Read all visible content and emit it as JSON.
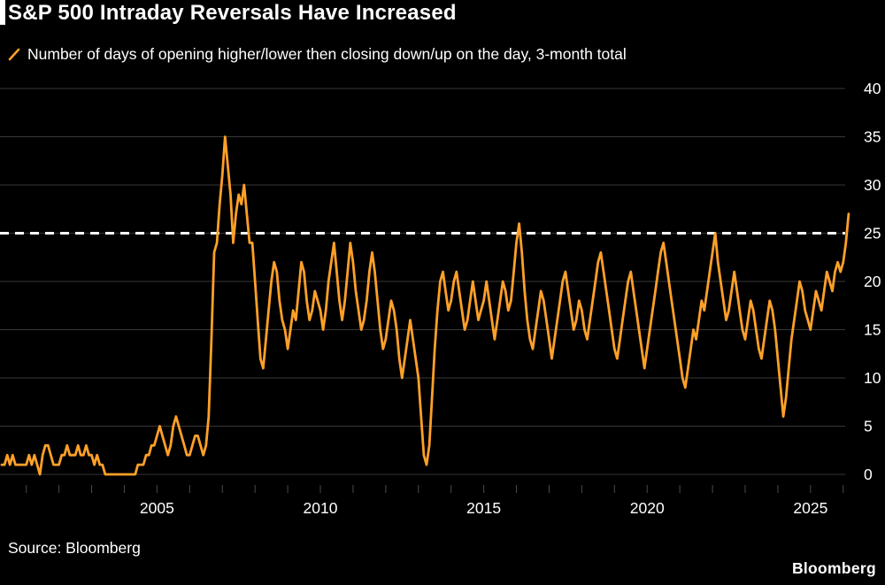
{
  "page": {
    "title": "S&P 500 Intraday Reversals Have Increased",
    "legend_label": "Number of days of opening higher/lower then closing down/up on the day, 3-month total",
    "source": "Source: Bloomberg",
    "brand_logo": "Bloomberg"
  },
  "colors": {
    "background": "#000000",
    "text": "#ffffff",
    "accent_orange": "#ffa028",
    "grid": "#383838",
    "tick": "#4a4a4a",
    "reference_line": "#ffffff"
  },
  "chart_data": {
    "type": "line",
    "title": "S&P 500 Intraday Reversals Have Increased",
    "xlabel": "",
    "ylabel": "",
    "ylim": [
      0,
      40
    ],
    "y_ticks": [
      0,
      5,
      10,
      15,
      20,
      25,
      30,
      35,
      40
    ],
    "x_ticks": [
      2005,
      2010,
      2015,
      2020,
      2025
    ],
    "x_range": [
      2000.25,
      2026.25
    ],
    "grid": "horizontal",
    "y_axis_side": "right",
    "legend_position": "top-left",
    "reference_line": {
      "value": 25,
      "style": "dashed",
      "color": "#ffffff"
    },
    "series": [
      {
        "name": "Number of days of opening higher/lower then closing down/up on the day, 3-month total",
        "color": "#ffa028",
        "x_start": 2000.25,
        "x_step_years": 0.0833333,
        "values": [
          1,
          1,
          2,
          1,
          2,
          1,
          1,
          1,
          1,
          1,
          2,
          1,
          2,
          1,
          0,
          2,
          3,
          3,
          2,
          1,
          1,
          1,
          2,
          2,
          3,
          2,
          2,
          2,
          3,
          2,
          2,
          3,
          2,
          2,
          1,
          2,
          1,
          1,
          0,
          0,
          0,
          0,
          0,
          0,
          0,
          0,
          0,
          0,
          0,
          0,
          1,
          1,
          1,
          2,
          2,
          3,
          3,
          4,
          5,
          4,
          3,
          2,
          3,
          5,
          6,
          5,
          4,
          3,
          2,
          2,
          3,
          4,
          4,
          3,
          2,
          3,
          6,
          14,
          23,
          24,
          28,
          31,
          35,
          32,
          29,
          24,
          27,
          29,
          28,
          30,
          27,
          24,
          24,
          20,
          16,
          12,
          11,
          14,
          17,
          20,
          22,
          21,
          18,
          16,
          15,
          13,
          15,
          17,
          16,
          19,
          22,
          21,
          18,
          16,
          17,
          19,
          18,
          17,
          15,
          17,
          20,
          22,
          24,
          21,
          18,
          16,
          18,
          21,
          24,
          22,
          19,
          17,
          15,
          16,
          18,
          21,
          23,
          21,
          18,
          15,
          13,
          14,
          16,
          18,
          17,
          15,
          12,
          10,
          12,
          14,
          16,
          14,
          12,
          10,
          6,
          2,
          1,
          3,
          8,
          13,
          17,
          20,
          21,
          19,
          17,
          18,
          20,
          21,
          19,
          17,
          15,
          16,
          18,
          20,
          18,
          16,
          17,
          18,
          20,
          18,
          16,
          14,
          16,
          18,
          20,
          19,
          17,
          18,
          21,
          24,
          26,
          23,
          19,
          16,
          14,
          13,
          15,
          17,
          19,
          18,
          16,
          14,
          12,
          14,
          16,
          18,
          20,
          21,
          19,
          17,
          15,
          16,
          18,
          17,
          15,
          14,
          16,
          18,
          20,
          22,
          23,
          21,
          19,
          17,
          15,
          13,
          12,
          14,
          16,
          18,
          20,
          21,
          19,
          17,
          15,
          13,
          11,
          13,
          15,
          17,
          19,
          21,
          23,
          24,
          22,
          20,
          18,
          16,
          14,
          12,
          10,
          9,
          11,
          13,
          15,
          14,
          16,
          18,
          17,
          19,
          21,
          23,
          25,
          22,
          20,
          18,
          16,
          17,
          19,
          21,
          19,
          17,
          15,
          14,
          16,
          18,
          17,
          15,
          13,
          12,
          14,
          16,
          18,
          17,
          15,
          12,
          9,
          6,
          8,
          11,
          14,
          16,
          18,
          20,
          19,
          17,
          16,
          15,
          17,
          19,
          18,
          17,
          19,
          21,
          20,
          19,
          21,
          22,
          21,
          22,
          24,
          27
        ]
      }
    ]
  }
}
